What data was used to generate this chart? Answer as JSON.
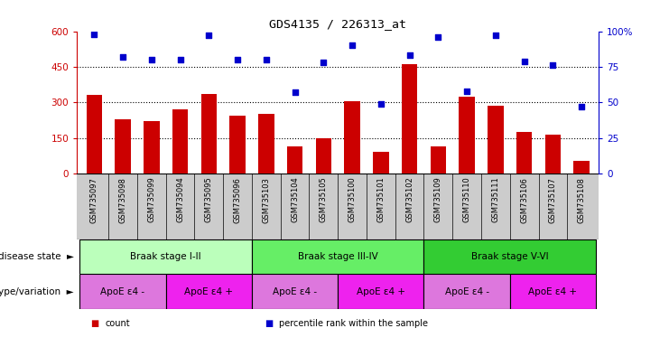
{
  "title": "GDS4135 / 226313_at",
  "samples": [
    "GSM735097",
    "GSM735098",
    "GSM735099",
    "GSM735094",
    "GSM735095",
    "GSM735096",
    "GSM735103",
    "GSM735104",
    "GSM735105",
    "GSM735100",
    "GSM735101",
    "GSM735102",
    "GSM735109",
    "GSM735110",
    "GSM735111",
    "GSM735106",
    "GSM735107",
    "GSM735108"
  ],
  "counts": [
    330,
    230,
    220,
    270,
    335,
    245,
    250,
    115,
    148,
    305,
    90,
    460,
    115,
    325,
    285,
    175,
    162,
    55
  ],
  "percentiles": [
    98,
    82,
    80,
    80,
    97,
    80,
    80,
    57,
    78,
    90,
    49,
    83,
    96,
    58,
    97,
    79,
    76,
    47
  ],
  "bar_color": "#cc0000",
  "dot_color": "#0000cc",
  "ylim_left": [
    0,
    600
  ],
  "ylim_right": [
    0,
    100
  ],
  "yticks_left": [
    0,
    150,
    300,
    450,
    600
  ],
  "yticks_right": [
    0,
    25,
    50,
    75,
    100
  ],
  "ytick_right_labels": [
    "0",
    "25",
    "50",
    "75",
    "100%"
  ],
  "hgrid_vals": [
    150,
    300,
    450
  ],
  "disease_stages": [
    {
      "label": "Braak stage I-II",
      "start": 0,
      "end": 6,
      "color": "#bbffbb"
    },
    {
      "label": "Braak stage III-IV",
      "start": 6,
      "end": 12,
      "color": "#66ee66"
    },
    {
      "label": "Braak stage V-VI",
      "start": 12,
      "end": 18,
      "color": "#33cc33"
    }
  ],
  "genotype_groups": [
    {
      "label": "ApoE ε4 -",
      "start": 0,
      "end": 3,
      "color": "#dd77dd"
    },
    {
      "label": "ApoE ε4 +",
      "start": 3,
      "end": 6,
      "color": "#ee22ee"
    },
    {
      "label": "ApoE ε4 -",
      "start": 6,
      "end": 9,
      "color": "#dd77dd"
    },
    {
      "label": "ApoE ε4 +",
      "start": 9,
      "end": 12,
      "color": "#ee22ee"
    },
    {
      "label": "ApoE ε4 -",
      "start": 12,
      "end": 15,
      "color": "#dd77dd"
    },
    {
      "label": "ApoE ε4 +",
      "start": 15,
      "end": 18,
      "color": "#ee22ee"
    }
  ],
  "legend_items": [
    {
      "label": "count",
      "color": "#cc0000"
    },
    {
      "label": "percentile rank within the sample",
      "color": "#0000cc"
    }
  ],
  "row_labels": [
    "disease state",
    "genotype/variation"
  ],
  "arrow_char": "►",
  "xlabel_bg": "#cccccc",
  "fig_bg": "#ffffff"
}
